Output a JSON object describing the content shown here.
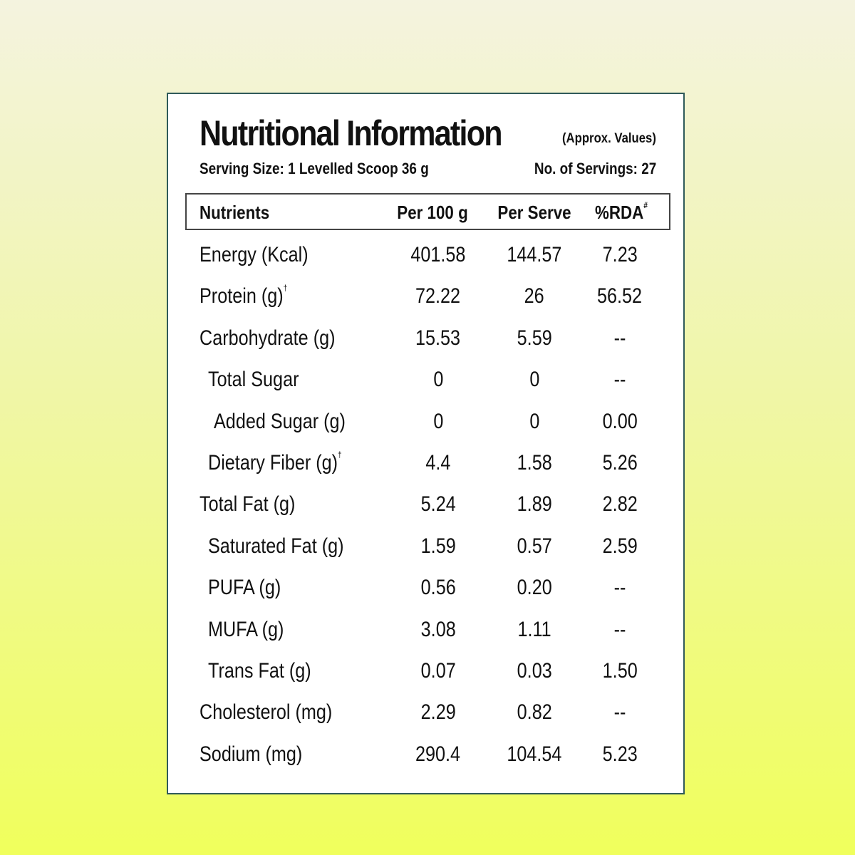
{
  "title": "Nutritional Information",
  "title_note": "(Approx. Values)",
  "serving_size": "Serving Size: 1 Levelled Scoop 36 g",
  "servings_count": "No. of Servings: 27",
  "columns": {
    "nutrients": "Nutrients",
    "per100g": "Per 100 g",
    "perServe": "Per Serve",
    "rda": "%RDA",
    "rda_mark": "#"
  },
  "rows": [
    {
      "label": "Energy (Kcal)",
      "mark": "",
      "indent": 0,
      "per100g": "401.58",
      "perServe": "144.57",
      "rda": "7.23"
    },
    {
      "label": "Protein (g)",
      "mark": "†",
      "indent": 0,
      "per100g": "72.22",
      "perServe": "26",
      "rda": "56.52"
    },
    {
      "label": "Carbohydrate (g)",
      "mark": "",
      "indent": 0,
      "per100g": "15.53",
      "perServe": "5.59",
      "rda": "--"
    },
    {
      "label": "Total Sugar",
      "mark": "",
      "indent": 1,
      "per100g": "0",
      "perServe": "0",
      "rda": "--"
    },
    {
      "label": "Added Sugar (g)",
      "mark": "",
      "indent": 2,
      "per100g": "0",
      "perServe": "0",
      "rda": "0.00"
    },
    {
      "label": "Dietary Fiber (g)",
      "mark": "†",
      "indent": 1,
      "per100g": "4.4",
      "perServe": "1.58",
      "rda": "5.26"
    },
    {
      "label": "Total Fat (g)",
      "mark": "",
      "indent": 0,
      "per100g": "5.24",
      "perServe": "1.89",
      "rda": "2.82"
    },
    {
      "label": "Saturated Fat (g)",
      "mark": "",
      "indent": 1,
      "per100g": "1.59",
      "perServe": "0.57",
      "rda": "2.59"
    },
    {
      "label": "PUFA (g)",
      "mark": "",
      "indent": 1,
      "per100g": "0.56",
      "perServe": "0.20",
      "rda": "--"
    },
    {
      "label": "MUFA (g)",
      "mark": "",
      "indent": 1,
      "per100g": "3.08",
      "perServe": "1.11",
      "rda": "--"
    },
    {
      "label": "Trans Fat (g)",
      "mark": "",
      "indent": 1,
      "per100g": "0.07",
      "perServe": "0.03",
      "rda": "1.50"
    },
    {
      "label": "Cholesterol (mg)",
      "mark": "",
      "indent": 0,
      "per100g": "2.29",
      "perServe": "0.82",
      "rda": "--"
    },
    {
      "label": "Sodium (mg)",
      "mark": "",
      "indent": 0,
      "per100g": "290.4",
      "perServe": "104.54",
      "rda": "5.23"
    }
  ]
}
